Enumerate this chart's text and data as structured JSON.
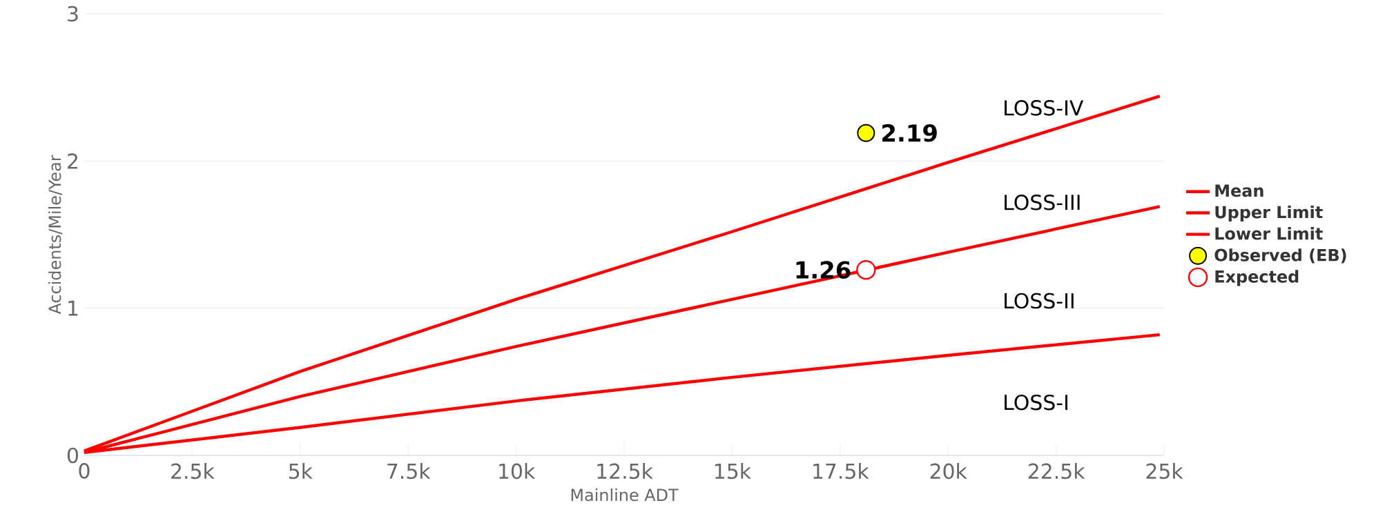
{
  "chart_data": {
    "type": "line",
    "xlabel": "Mainline ADT",
    "ylabel": "Accidents/Mile/Year",
    "xlim": [
      0,
      25000
    ],
    "ylim": [
      0,
      3
    ],
    "xticks": [
      0,
      {
        "value": 2500,
        "label": "2.5k"
      },
      {
        "value": 5000,
        "label": "5k"
      },
      {
        "value": 7500,
        "label": "7.5k"
      },
      {
        "value": 10000,
        "label": "10k"
      },
      {
        "value": 12500,
        "label": "12.5k"
      },
      {
        "value": 15000,
        "label": "15k"
      },
      {
        "value": 17500,
        "label": "17.5k"
      },
      {
        "value": 20000,
        "label": "20k"
      },
      {
        "value": 22500,
        "label": "22.5k"
      },
      {
        "value": 25000,
        "label": "25k"
      }
    ],
    "yticks": [
      0,
      1,
      2,
      3
    ],
    "grid": "y",
    "legend": "right",
    "series": [
      {
        "name": "Mean",
        "color": "#ff0000",
        "x": [
          0,
          5000,
          10000,
          15000,
          20000,
          24900
        ],
        "values": [
          0.02,
          0.4,
          0.74,
          1.06,
          1.38,
          1.69
        ]
      },
      {
        "name": "Upper Limit",
        "color": "#ff0000",
        "x": [
          0,
          5000,
          10000,
          15000,
          20000,
          24900
        ],
        "values": [
          0.03,
          0.57,
          1.06,
          1.52,
          1.99,
          2.44
        ]
      },
      {
        "name": "Lower Limit",
        "color": "#ff0000",
        "x": [
          0,
          5000,
          10000,
          15000,
          20000,
          24900
        ],
        "values": [
          0.02,
          0.19,
          0.37,
          0.53,
          0.68,
          0.82
        ]
      },
      {
        "name": "Observed (EB)",
        "type": "scatter",
        "color": "#ffff00",
        "x": [
          18100
        ],
        "values": [
          2.19
        ],
        "value_labels": [
          "2.19"
        ]
      },
      {
        "name": "Expected",
        "type": "scatter",
        "color": "#ff0000",
        "x": [
          18100
        ],
        "values": [
          1.26
        ],
        "value_labels": [
          "1.26"
        ]
      }
    ],
    "annotations": [
      "LOSS-IV",
      "LOSS-III",
      "LOSS-II",
      "LOSS-I"
    ]
  }
}
